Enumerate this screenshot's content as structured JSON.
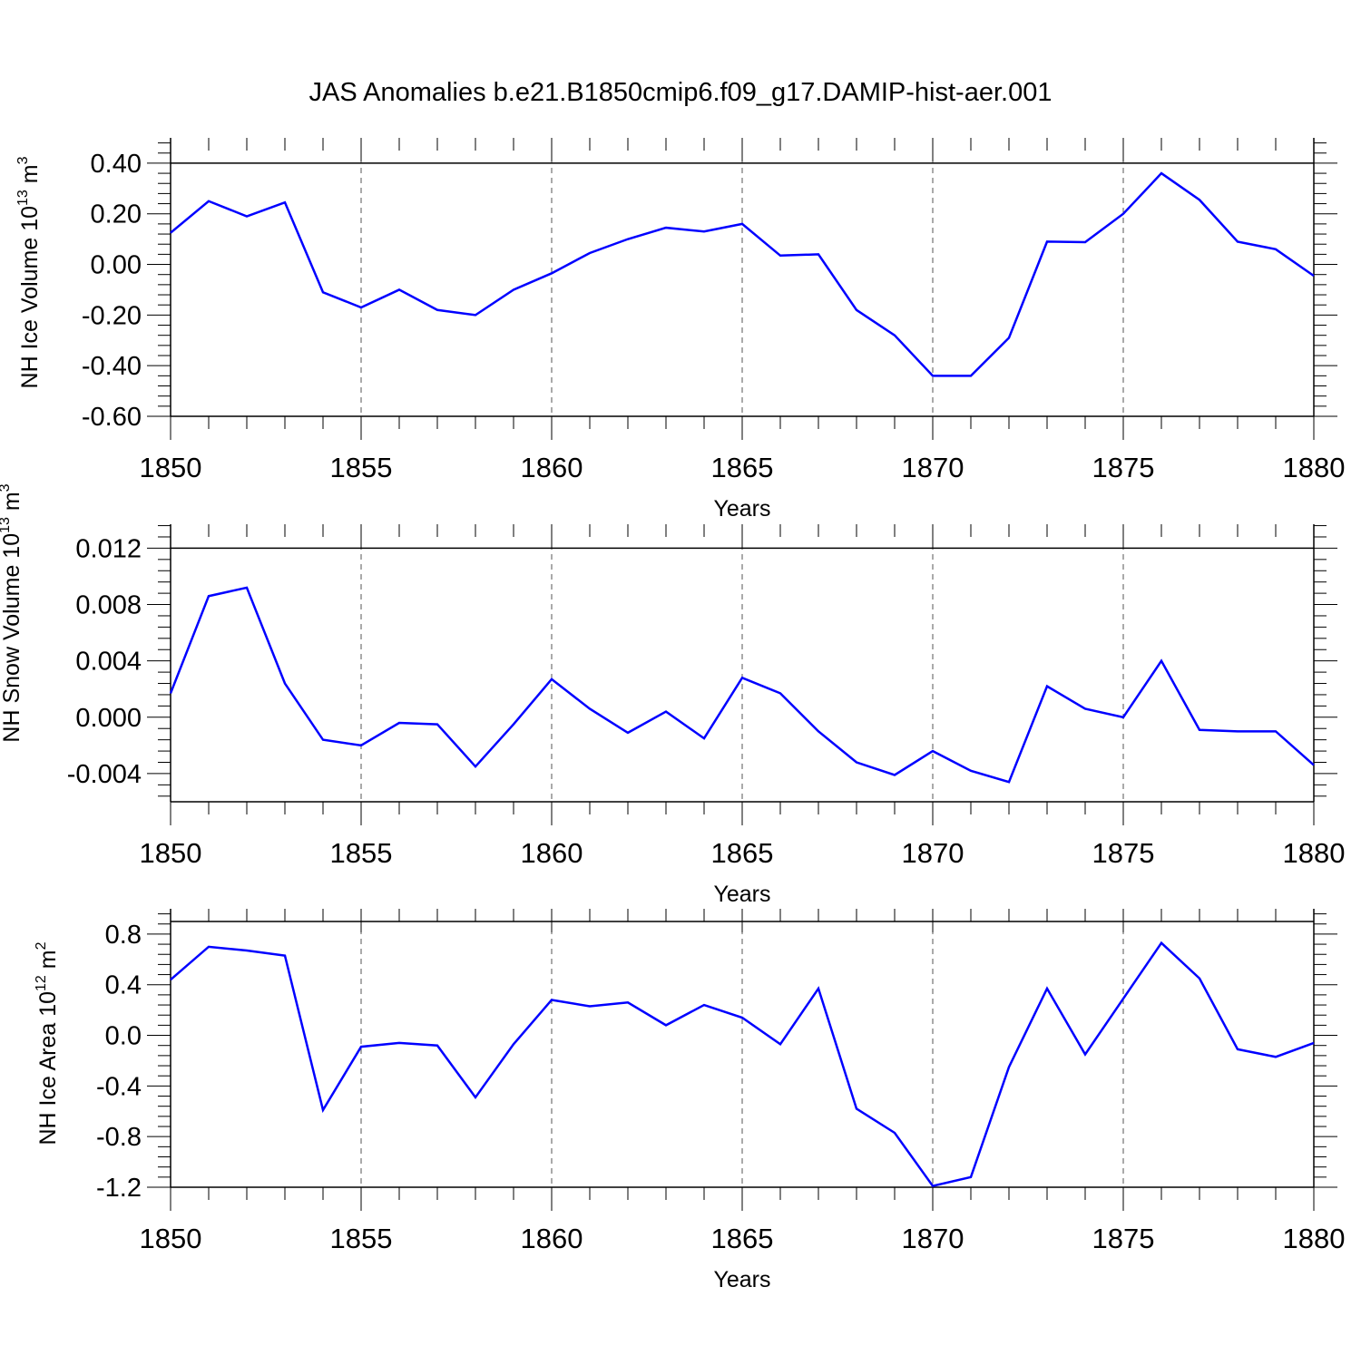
{
  "title": "JAS Anomalies b.e21.B1850cmip6.f09_g17.DAMIP-hist-aer.001",
  "line_color": "#0000ff",
  "chart_data": [
    {
      "type": "line",
      "xlabel": "Years",
      "ylabel": "NH Ice Volume 10",
      "ylabel_sup": "13",
      "ylabel_unit": " m",
      "ylabel_unit_sup": "3",
      "xlim": [
        1850,
        1880
      ],
      "ylim": [
        -0.6,
        0.4
      ],
      "x_ticks": [
        1850,
        1855,
        1860,
        1865,
        1870,
        1875,
        1880
      ],
      "y_ticks": [
        0.4,
        0.2,
        0.0,
        -0.2,
        -0.4,
        -0.6
      ],
      "y_tick_labels": [
        "0.40",
        "0.20",
        "0.00",
        "-0.20",
        "-0.40",
        "-0.60"
      ],
      "grid": "vertical dashed at major x ticks",
      "x": [
        1850,
        1851,
        1852,
        1853,
        1854,
        1855,
        1856,
        1857,
        1858,
        1859,
        1860,
        1861,
        1862,
        1863,
        1864,
        1865,
        1866,
        1867,
        1868,
        1869,
        1870,
        1871,
        1872,
        1873,
        1874,
        1875,
        1876,
        1877,
        1878,
        1879,
        1880
      ],
      "values": [
        0.125,
        0.25,
        0.19,
        0.245,
        -0.11,
        -0.17,
        -0.1,
        -0.18,
        -0.2,
        -0.1,
        -0.035,
        0.045,
        0.1,
        0.145,
        0.13,
        0.16,
        0.035,
        0.04,
        -0.18,
        -0.28,
        -0.44,
        -0.44,
        -0.29,
        0.09,
        0.088,
        0.2,
        0.36,
        0.255,
        0.09,
        0.06,
        -0.045
      ]
    },
    {
      "type": "line",
      "xlabel": "Years",
      "ylabel": "NH Snow Volume 10",
      "ylabel_sup": "13",
      "ylabel_unit": " m",
      "ylabel_unit_sup": "3",
      "xlim": [
        1850,
        1880
      ],
      "ylim": [
        -0.006,
        0.012
      ],
      "x_ticks": [
        1850,
        1855,
        1860,
        1865,
        1870,
        1875,
        1880
      ],
      "y_ticks": [
        0.012,
        0.008,
        0.004,
        0.0,
        -0.004
      ],
      "y_tick_labels": [
        "0.012",
        "0.008",
        "0.004",
        "0.000",
        "-0.004"
      ],
      "grid": "vertical dashed at major x ticks",
      "x": [
        1850,
        1851,
        1852,
        1853,
        1854,
        1855,
        1856,
        1857,
        1858,
        1859,
        1860,
        1861,
        1862,
        1863,
        1864,
        1865,
        1866,
        1867,
        1868,
        1869,
        1870,
        1871,
        1872,
        1873,
        1874,
        1875,
        1876,
        1877,
        1878,
        1879,
        1880
      ],
      "values": [
        0.0017,
        0.0086,
        0.0092,
        0.0024,
        -0.0016,
        -0.002,
        -0.0004,
        -0.0005,
        -0.0035,
        -0.0005,
        0.0027,
        0.0006,
        -0.0011,
        0.0004,
        -0.0015,
        0.0028,
        0.0017,
        -0.001,
        -0.0032,
        -0.0041,
        -0.0024,
        -0.0038,
        -0.0046,
        0.0022,
        0.0006,
        0.0,
        0.004,
        -0.0009,
        -0.001,
        -0.001,
        -0.0034
      ]
    },
    {
      "type": "line",
      "xlabel": "Years",
      "ylabel": "NH Ice Area 10",
      "ylabel_sup": "12",
      "ylabel_unit": " m",
      "ylabel_unit_sup": "2",
      "xlim": [
        1850,
        1880
      ],
      "ylim": [
        -1.2,
        0.9
      ],
      "x_ticks": [
        1850,
        1855,
        1860,
        1865,
        1870,
        1875,
        1880
      ],
      "y_ticks": [
        0.8,
        0.4,
        0.0,
        -0.4,
        -0.8,
        -1.2
      ],
      "y_tick_labels": [
        "0.8",
        "0.4",
        "0.0",
        "-0.4",
        "-0.8",
        "-1.2"
      ],
      "grid": "vertical dashed at major x ticks",
      "x": [
        1850,
        1851,
        1852,
        1853,
        1854,
        1855,
        1856,
        1857,
        1858,
        1859,
        1860,
        1861,
        1862,
        1863,
        1864,
        1865,
        1866,
        1867,
        1868,
        1869,
        1870,
        1871,
        1872,
        1873,
        1874,
        1875,
        1876,
        1877,
        1878,
        1879,
        1880
      ],
      "values": [
        0.44,
        0.7,
        0.67,
        0.63,
        -0.59,
        -0.09,
        -0.06,
        -0.08,
        -0.49,
        -0.07,
        0.28,
        0.23,
        0.26,
        0.08,
        0.24,
        0.14,
        -0.07,
        0.37,
        -0.58,
        -0.77,
        -1.19,
        -1.12,
        -0.25,
        0.37,
        -0.15,
        0.29,
        0.73,
        0.45,
        -0.11,
        -0.17,
        -0.06
      ]
    }
  ]
}
